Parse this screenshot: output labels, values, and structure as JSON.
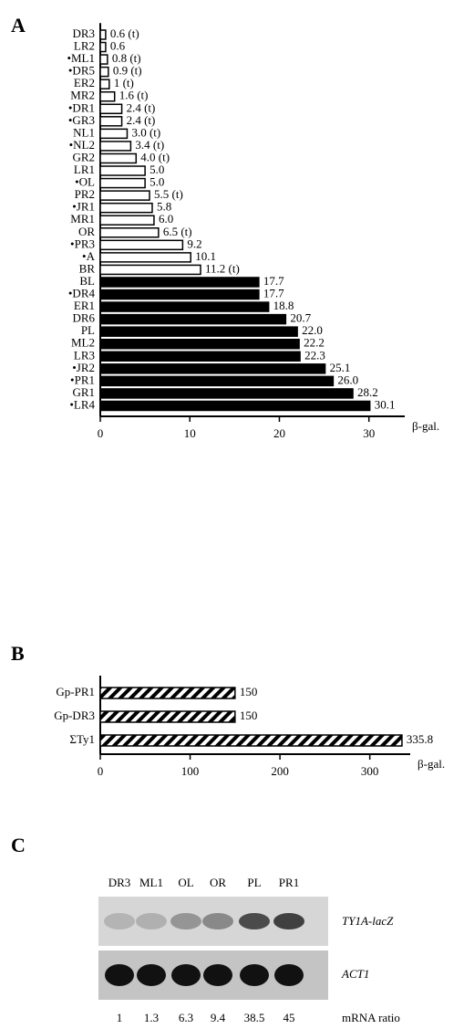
{
  "chart_data": [
    {
      "type": "hbar",
      "panel": "A",
      "categories": [
        "DR3",
        "LR2",
        "•ML1",
        "•DR5",
        "ER2",
        "MR2",
        "•DR1",
        "•GR3",
        "NL1",
        "•NL2",
        "GR2",
        "LR1",
        "•OL",
        "PR2",
        "•JR1",
        "MR1",
        "OR",
        "•PR3",
        "•A",
        "BR",
        "BL",
        "•DR4",
        "ER1",
        "DR6",
        "PL",
        "ML2",
        "LR3",
        "•JR2",
        "•PR1",
        "GR1",
        "•LR4"
      ],
      "values": [
        0.6,
        0.6,
        0.8,
        0.9,
        1,
        1.6,
        2.4,
        2.4,
        3.0,
        3.4,
        4.0,
        5.0,
        5.0,
        5.5,
        5.8,
        6.0,
        6.5,
        9.2,
        10.1,
        11.2,
        17.7,
        17.7,
        18.8,
        20.7,
        22.0,
        22.2,
        22.3,
        25.1,
        26.0,
        28.2,
        30.1
      ],
      "value_labels": [
        "0.6 (t)",
        "0.6",
        "0.8 (t)",
        "0.9 (t)",
        "1 (t)",
        "1.6 (t)",
        "2.4 (t)",
        "2.4 (t)",
        "3.0 (t)",
        "3.4 (t)",
        "4.0 (t)",
        "5.0",
        "5.0",
        "5.5 (t)",
        "5.8",
        "6.0",
        "6.5 (t)",
        "9.2",
        "10.1",
        "11.2 (t)",
        "17.7",
        "17.7",
        "18.8",
        "20.7",
        "22.0",
        "22.2",
        "22.3",
        "25.1",
        "26.0",
        "28.2",
        "30.1"
      ],
      "colors": [
        "#ffffff",
        "#ffffff",
        "#ffffff",
        "#ffffff",
        "#ffffff",
        "#ffffff",
        "#ffffff",
        "#ffffff",
        "#ffffff",
        "#ffffff",
        "#ffffff",
        "#ffffff",
        "#ffffff",
        "#ffffff",
        "#ffffff",
        "#ffffff",
        "#ffffff",
        "#ffffff",
        "#ffffff",
        "#ffffff",
        "#000000",
        "#000000",
        "#000000",
        "#000000",
        "#000000",
        "#000000",
        "#000000",
        "#000000",
        "#000000",
        "#000000",
        "#000000"
      ],
      "xlabel": "β-gal.",
      "xlim": [
        0,
        34
      ],
      "xticks": [
        0,
        10,
        20,
        30
      ]
    },
    {
      "type": "hbar",
      "panel": "B",
      "categories": [
        "Gp-PR1",
        "Gp-DR3",
        "ΣTy1"
      ],
      "values": [
        150,
        150,
        335.8
      ],
      "hatch": true,
      "xlabel": "β-gal.",
      "xlim": [
        0,
        345
      ],
      "xticks": [
        0,
        100,
        200,
        300
      ]
    }
  ],
  "blot": {
    "panel": "C",
    "lanes": [
      "DR3",
      "ML1",
      "OL",
      "OR",
      "PL",
      "PR1"
    ],
    "rows": [
      "TY1A-lacZ",
      "ACT1"
    ],
    "ratios": [
      1,
      1.3,
      6.3,
      9.4,
      38.5,
      45
    ],
    "ratio_label": "mRNA ratio"
  }
}
